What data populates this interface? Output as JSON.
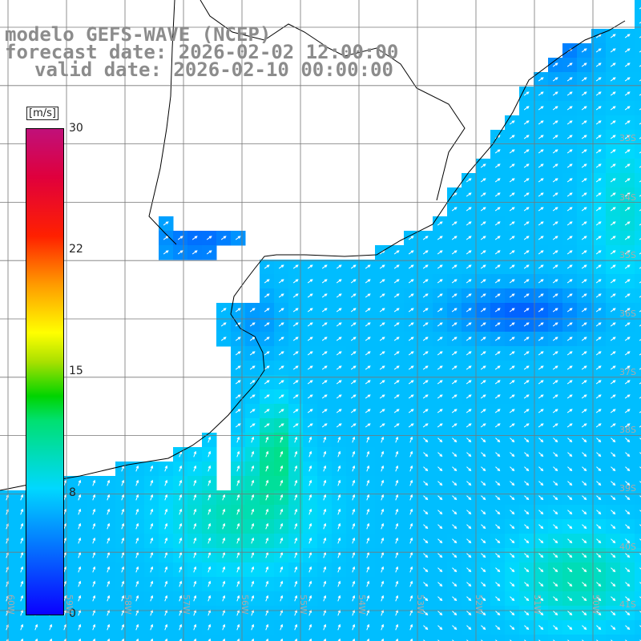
{
  "title": {
    "line1": "modelo GEFS-WAVE (NCEP)",
    "line2": "forecast date: 2026-02-02 12:00:00",
    "line3": "valid date: 2026-02-10 00:00:00"
  },
  "colorbar": {
    "unit": "[m/s]",
    "ticks": [
      "30",
      "22",
      "15",
      "8",
      "0"
    ],
    "min": 0,
    "max": 30,
    "colors": {
      "low": "#0a00ff",
      "cyan": "#00d8ff",
      "green": "#00d400",
      "yellow": "#ffff00",
      "orange": "#ff9a00",
      "red": "#ff2000",
      "high": "#c0107a"
    }
  },
  "lat_labels": [
    "33S",
    "34S",
    "35S",
    "36S",
    "37S",
    "38S",
    "39S",
    "40S",
    "41S"
  ],
  "lon_labels": [
    "60W",
    "59W",
    "58W",
    "57W",
    "56W",
    "55W",
    "54W",
    "53W",
    "52W",
    "51W",
    "50W"
  ],
  "land_color": "#ffffff",
  "coast_color": "#000000",
  "grid_color": "#777777",
  "arrow_color": "#ffffff"
}
